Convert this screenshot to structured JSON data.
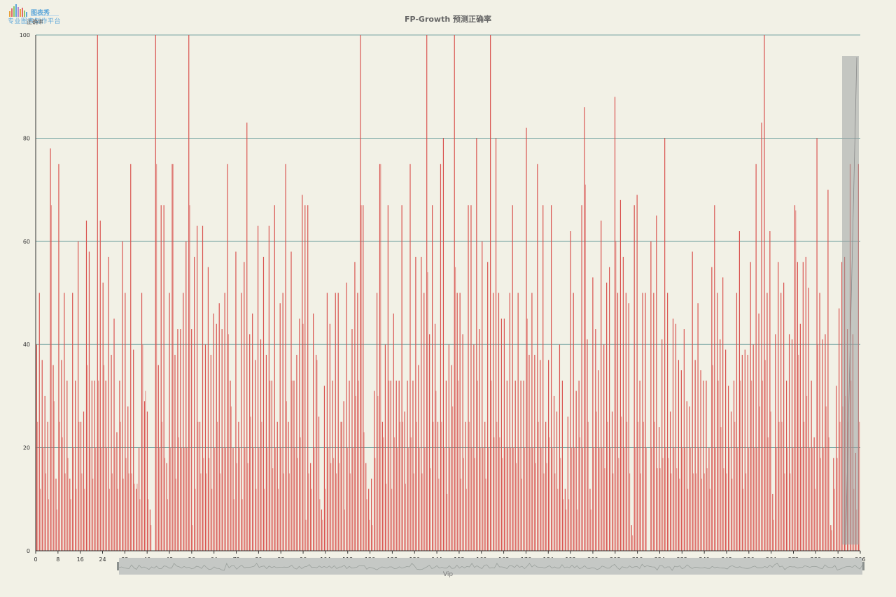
{
  "logo": {
    "brand": "图表秀",
    "slogan": "专业图表制作平台",
    "colors": [
      "#e8a23a",
      "#e06b6b",
      "#8fc66b",
      "#5ea7d9",
      "#b48ad6"
    ]
  },
  "chart_data": {
    "type": "bar",
    "title": "FP-Growth 预测正确率",
    "ylabel": "正确率",
    "xlabel": "Vip",
    "ylim": [
      0,
      100
    ],
    "y_ticks": [
      0,
      20,
      40,
      60,
      80,
      100
    ],
    "x_range": [
      0,
      296
    ],
    "x_ticks": [
      0,
      8,
      16,
      24,
      32,
      40,
      48,
      56,
      64,
      72,
      80,
      88,
      96,
      104,
      112,
      120,
      128,
      136,
      144,
      152,
      160,
      168,
      176,
      184,
      192,
      200,
      208,
      216,
      224,
      232,
      240,
      248,
      256,
      264,
      272,
      280,
      288,
      296
    ],
    "grid": true,
    "bar_color": "#d9534f",
    "grid_color": "#4b8a8a",
    "has_dataZoom": true,
    "series": [
      {
        "values": [
          40,
          50,
          37,
          30,
          25,
          78,
          36,
          14,
          75,
          37,
          50,
          33,
          14,
          50,
          33,
          60,
          25,
          27,
          64,
          58,
          33,
          33,
          100,
          64,
          52,
          33,
          57,
          38,
          45,
          23,
          33,
          60,
          50,
          28,
          75,
          39,
          12,
          20,
          50,
          29,
          27,
          8,
          0,
          100,
          36,
          67,
          67,
          17,
          50,
          75,
          38,
          43,
          43,
          50,
          60,
          100,
          43,
          57,
          63,
          25,
          63,
          40,
          55,
          38,
          46,
          44,
          48,
          43,
          50,
          75,
          33,
          20,
          58,
          25,
          50,
          56,
          83,
          42,
          46,
          37,
          63,
          41,
          57,
          38,
          63,
          33,
          67,
          25,
          48,
          50,
          75,
          25,
          58,
          33,
          38,
          45,
          69,
          67,
          67,
          17,
          46,
          38,
          26,
          8,
          32,
          50,
          44,
          33,
          50,
          50,
          25,
          29,
          52,
          33,
          43,
          56,
          50,
          100,
          67,
          17,
          12,
          14,
          31,
          50,
          75,
          25,
          40,
          67,
          33,
          46,
          33,
          33,
          67,
          27,
          33,
          75,
          33,
          57,
          36,
          57,
          50,
          100,
          42,
          67,
          44,
          25,
          75,
          80,
          33,
          40,
          36,
          100,
          50,
          50,
          42,
          25,
          67,
          67,
          40,
          80,
          43,
          60,
          25,
          56,
          100,
          50,
          80,
          50,
          45,
          45,
          33,
          50,
          67,
          33,
          50,
          33,
          33,
          82,
          38,
          50,
          38,
          75,
          37,
          67,
          25,
          37,
          67,
          30,
          27,
          40,
          33,
          12,
          26,
          62,
          50,
          31,
          33,
          67,
          86,
          41,
          12,
          53,
          43,
          35,
          64,
          40,
          52,
          55,
          27,
          88,
          50,
          68,
          57,
          50,
          48,
          5,
          67,
          69,
          33,
          50,
          50,
          0,
          60,
          50,
          65,
          24,
          41,
          80,
          50,
          27,
          45,
          44,
          37,
          35,
          43,
          29,
          28,
          58,
          37,
          48,
          35,
          33,
          33,
          20,
          55,
          67,
          50,
          41,
          53,
          39,
          32,
          27,
          33,
          50,
          62,
          38,
          39,
          38,
          56,
          40,
          75,
          46,
          83,
          100,
          50,
          62,
          11,
          42,
          56,
          50,
          52,
          33,
          42,
          41,
          67,
          56,
          44,
          56,
          57,
          51,
          33,
          22,
          80,
          50,
          41,
          42,
          70,
          5,
          18,
          32,
          47,
          56,
          57,
          43,
          75,
          42,
          19,
          75
        ]
      },
      {
        "values": [
          25,
          12,
          20,
          15,
          10,
          67,
          29,
          8,
          25,
          22,
          15,
          18,
          10,
          20,
          12,
          25,
          15,
          12,
          36,
          20,
          14,
          20,
          33,
          20,
          36,
          20,
          12,
          15,
          20,
          12,
          25,
          14,
          18,
          15,
          15,
          13,
          13,
          10,
          40,
          31,
          10,
          5,
          0,
          75,
          20,
          25,
          18,
          10,
          20,
          75,
          14,
          22,
          20,
          20,
          20,
          67,
          5,
          12,
          25,
          15,
          18,
          15,
          18,
          12,
          20,
          25,
          15,
          20,
          20,
          42,
          28,
          10,
          17,
          20,
          10,
          20,
          17,
          26,
          20,
          12,
          20,
          25,
          12,
          20,
          33,
          16,
          20,
          12,
          20,
          15,
          29,
          15,
          33,
          20,
          18,
          22,
          44,
          6,
          15,
          12,
          20,
          37,
          10,
          6,
          12,
          20,
          17,
          18,
          15,
          17,
          25,
          8,
          20,
          15,
          20,
          30,
          33,
          67,
          23,
          10,
          6,
          5,
          18,
          30,
          75,
          22,
          13,
          33,
          12,
          22,
          20,
          25,
          25,
          13,
          20,
          22,
          15,
          25,
          20,
          15,
          20,
          54,
          16,
          25,
          31,
          14,
          25,
          20,
          11,
          20,
          28,
          55,
          33,
          14,
          18,
          12,
          25,
          20,
          18,
          33,
          20,
          20,
          14,
          20,
          33,
          22,
          25,
          22,
          18,
          20,
          20,
          20,
          20,
          17,
          20,
          14,
          20,
          45,
          20,
          20,
          17,
          25,
          20,
          15,
          17,
          22,
          20,
          15,
          12,
          18,
          10,
          8,
          10,
          20,
          20,
          8,
          22,
          20,
          71,
          25,
          8,
          20,
          27,
          20,
          20,
          16,
          25,
          20,
          15,
          60,
          18,
          26,
          20,
          25,
          15,
          3,
          20,
          25,
          15,
          25,
          20,
          0,
          20,
          25,
          16,
          16,
          18,
          20,
          18,
          15,
          20,
          16,
          14,
          20,
          20,
          12,
          20,
          15,
          15,
          20,
          14,
          15,
          16,
          12,
          36,
          20,
          33,
          24,
          16,
          15,
          20,
          14,
          25,
          20,
          33,
          12,
          15,
          20,
          33,
          20,
          20,
          28,
          33,
          37,
          22,
          27,
          6,
          20,
          25,
          25,
          15,
          20,
          15,
          20,
          66,
          38,
          20,
          25,
          30,
          20,
          20,
          12,
          40,
          18,
          20,
          28,
          22,
          4,
          12,
          18,
          25,
          28,
          30,
          25,
          33,
          12,
          8,
          25
        ]
      }
    ]
  }
}
